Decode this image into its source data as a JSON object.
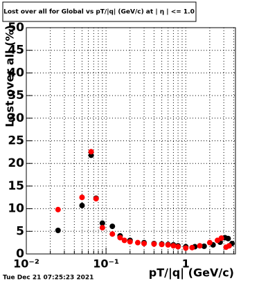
{
  "chart_data": {
    "type": "scatter",
    "title": "Lost over all for Global vs pT/|q| (GeV/c) at | η | <= 1.0",
    "x_label": "pT/|q| (GeV/c)",
    "y_label": "Lost over all (%)",
    "timestamp": "Tue Dec 21 07:25:23 2021",
    "log_x": true,
    "grid": true,
    "xlim": [
      0.01,
      4.2
    ],
    "ylim": [
      0,
      50
    ],
    "xticks": [
      {
        "value": 0.01,
        "label": "10⁻²"
      },
      {
        "value": 0.1,
        "label": "10⁻¹"
      },
      1
    ],
    "xminorticks": [
      0.02,
      0.03,
      0.04,
      0.05,
      0.06,
      0.07,
      0.08,
      0.09,
      0.2,
      0.3,
      0.4,
      0.5,
      0.6,
      0.7,
      0.8,
      0.9,
      2,
      3,
      4
    ],
    "yticks": [
      0,
      5,
      10,
      15,
      20,
      25,
      30,
      35,
      40,
      45,
      50
    ],
    "series": [
      {
        "color": "#000000",
        "x": [
          0.025,
          0.05,
          0.065,
          0.075,
          0.09,
          0.12,
          0.15,
          0.2,
          0.3,
          0.4,
          0.5,
          0.6,
          0.7,
          0.8,
          1.0,
          1.3,
          1.7,
          2.2,
          2.7,
          3.1,
          3.4,
          3.8
        ],
        "values": [
          5.2,
          10.7,
          21.8,
          12.3,
          6.8,
          6.1,
          4.0,
          3.0,
          2.5,
          2.3,
          2.2,
          2.1,
          2.0,
          1.8,
          1.6,
          1.6,
          1.7,
          2.0,
          2.6,
          3.6,
          3.4,
          2.3
        ]
      },
      {
        "color": "#ff0000",
        "x": [
          0.025,
          0.05,
          0.065,
          0.075,
          0.09,
          0.12,
          0.15,
          0.17,
          0.2,
          0.25,
          0.3,
          0.4,
          0.5,
          0.6,
          0.7,
          0.8,
          1.0,
          1.2,
          1.5,
          2.0,
          2.5,
          2.8,
          3.2,
          3.5
        ],
        "values": [
          9.8,
          12.5,
          22.6,
          12.2,
          5.8,
          4.4,
          3.6,
          3.0,
          2.7,
          2.5,
          2.3,
          2.2,
          2.1,
          2.0,
          1.8,
          1.6,
          1.3,
          1.4,
          1.8,
          2.5,
          3.0,
          3.5,
          1.5,
          1.8
        ]
      }
    ]
  }
}
